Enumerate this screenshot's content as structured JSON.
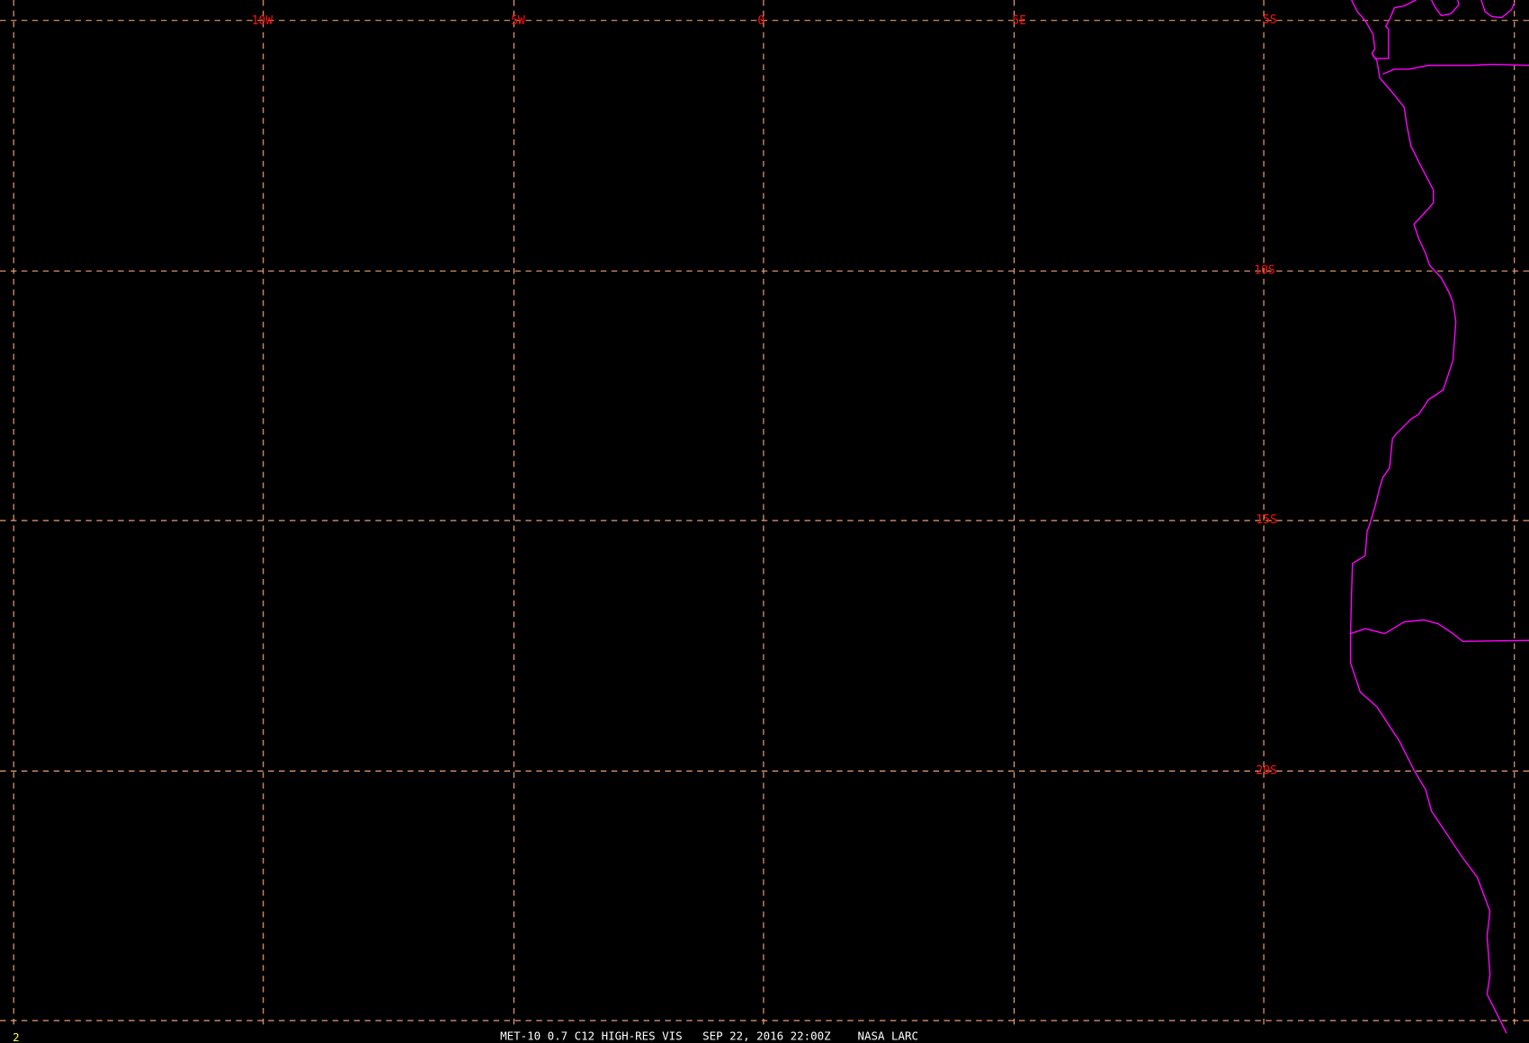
{
  "map": {
    "background_color": "#000000",
    "grid_color": "#ffb080",
    "label_color": "#ff1010",
    "coastline_color": "#ff00ff",
    "longitude_labels": [
      "10W",
      "5W",
      "0",
      "5E"
    ],
    "latitude_labels": [
      "5S",
      "10S",
      "15S",
      "20S"
    ]
  },
  "footer": {
    "frame_number": "2",
    "caption": "MET-10 0.7 C12 HIGH-RES VIS   SEP 22, 2016 22:00Z    NASA LARC"
  }
}
